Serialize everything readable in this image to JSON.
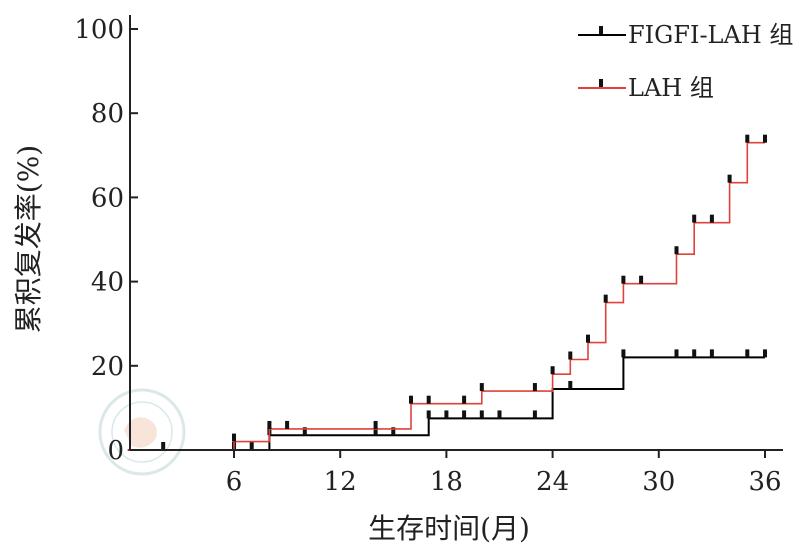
{
  "chart_data": {
    "type": "line",
    "title": "",
    "xlabel": "生存时间(月)",
    "ylabel": "累积复发率(%)",
    "xlim": [
      0,
      36
    ],
    "ylim": [
      0,
      100
    ],
    "xticks": [
      6,
      12,
      18,
      24,
      30,
      36
    ],
    "yticks": [
      0,
      20,
      40,
      60,
      80,
      100
    ],
    "grid": false,
    "legend_position": "top-right",
    "series": [
      {
        "name": "FIGFI-LAH 组",
        "color": "#000000",
        "steps": [
          [
            0,
            0
          ],
          [
            8,
            3.5
          ],
          [
            17,
            7.5
          ],
          [
            24,
            14.5
          ],
          [
            28,
            22
          ]
        ],
        "x_end": 36,
        "censor_x": [
          2,
          6,
          7,
          8,
          10,
          14,
          15,
          17,
          18,
          19,
          20,
          21,
          23,
          25,
          28,
          31,
          32,
          33,
          35,
          36
        ]
      },
      {
        "name": "LAH 组",
        "color": "#e0413a",
        "steps": [
          [
            0,
            0
          ],
          [
            6,
            2
          ],
          [
            8,
            5
          ],
          [
            16,
            11
          ],
          [
            20,
            14
          ],
          [
            24,
            18
          ],
          [
            25,
            21.5
          ],
          [
            26,
            25.5
          ],
          [
            27,
            35
          ],
          [
            28,
            39.5
          ],
          [
            31,
            46.5
          ],
          [
            32,
            54
          ],
          [
            34,
            63.5
          ],
          [
            35,
            73
          ]
        ],
        "x_end": 36,
        "censor_x": [
          6,
          8,
          9,
          14,
          16,
          17,
          19,
          20,
          23,
          24,
          25,
          26,
          27,
          28,
          29,
          31,
          32,
          33,
          34,
          35,
          36
        ]
      }
    ]
  }
}
